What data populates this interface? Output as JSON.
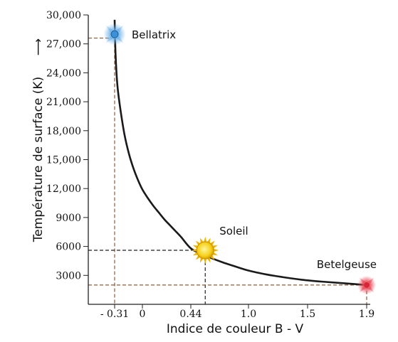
{
  "chart_data": {
    "type": "line",
    "title": "",
    "xlabel": "Indice de couleur B - V",
    "ylabel": "Température de surface (K)",
    "ylabel_arrow": "⟶",
    "xlim": [
      -0.5,
      2.0
    ],
    "ylim": [
      0,
      30000
    ],
    "x_ticks": [
      -0.31,
      0,
      0.44,
      1.0,
      1.5,
      1.9
    ],
    "x_tick_labels": [
      "- 0.31",
      "0",
      "0.44",
      "1.0",
      "1.5",
      "1.9"
    ],
    "y_ticks": [
      3000,
      6000,
      9000,
      12000,
      15000,
      18000,
      21000,
      24000,
      27000,
      30000
    ],
    "y_tick_labels": [
      "3000",
      "6000",
      "9000",
      "12,000",
      "15,000",
      "18,000",
      "21,000",
      "24,000",
      "27,000",
      "30,000"
    ],
    "grid": false,
    "series": [
      {
        "color": "#1a1a1a",
        "x": [
          -0.31,
          -0.3,
          -0.28,
          -0.25,
          -0.2,
          -0.15,
          -0.1,
          -0.05,
          0.0,
          0.05,
          0.1,
          0.15,
          0.2,
          0.25,
          0.3,
          0.35,
          0.44,
          0.55,
          0.65,
          0.75,
          0.85,
          1.0,
          1.15,
          1.3,
          1.45,
          1.6,
          1.75,
          1.9
        ],
        "y": [
          29500,
          26000,
          22800,
          20500,
          17600,
          15600,
          14100,
          12900,
          11900,
          11000,
          10200,
          9500,
          8800,
          8200,
          7600,
          7000,
          5800,
          5200,
          4750,
          4350,
          4000,
          3500,
          3100,
          2800,
          2550,
          2350,
          2180,
          2000
        ]
      }
    ],
    "annotations": [
      {
        "label": "Bellatrix",
        "x": -0.31,
        "y": 28000,
        "color": "#3d8fd6"
      },
      {
        "label": "Soleil",
        "x": 0.58,
        "y": 5600,
        "color": "#f4c20d"
      },
      {
        "label": "Betelgeuse",
        "x": 1.9,
        "y": 2000,
        "color": "#d8253a"
      }
    ],
    "guide_lines": [
      {
        "x": -0.31,
        "y": 27600,
        "color": "#8a5a3c"
      },
      {
        "x": 0.58,
        "y": 5600,
        "color": "#222222"
      },
      {
        "x": 1.9,
        "y": 2000,
        "color": "#8a5a3c"
      }
    ]
  }
}
